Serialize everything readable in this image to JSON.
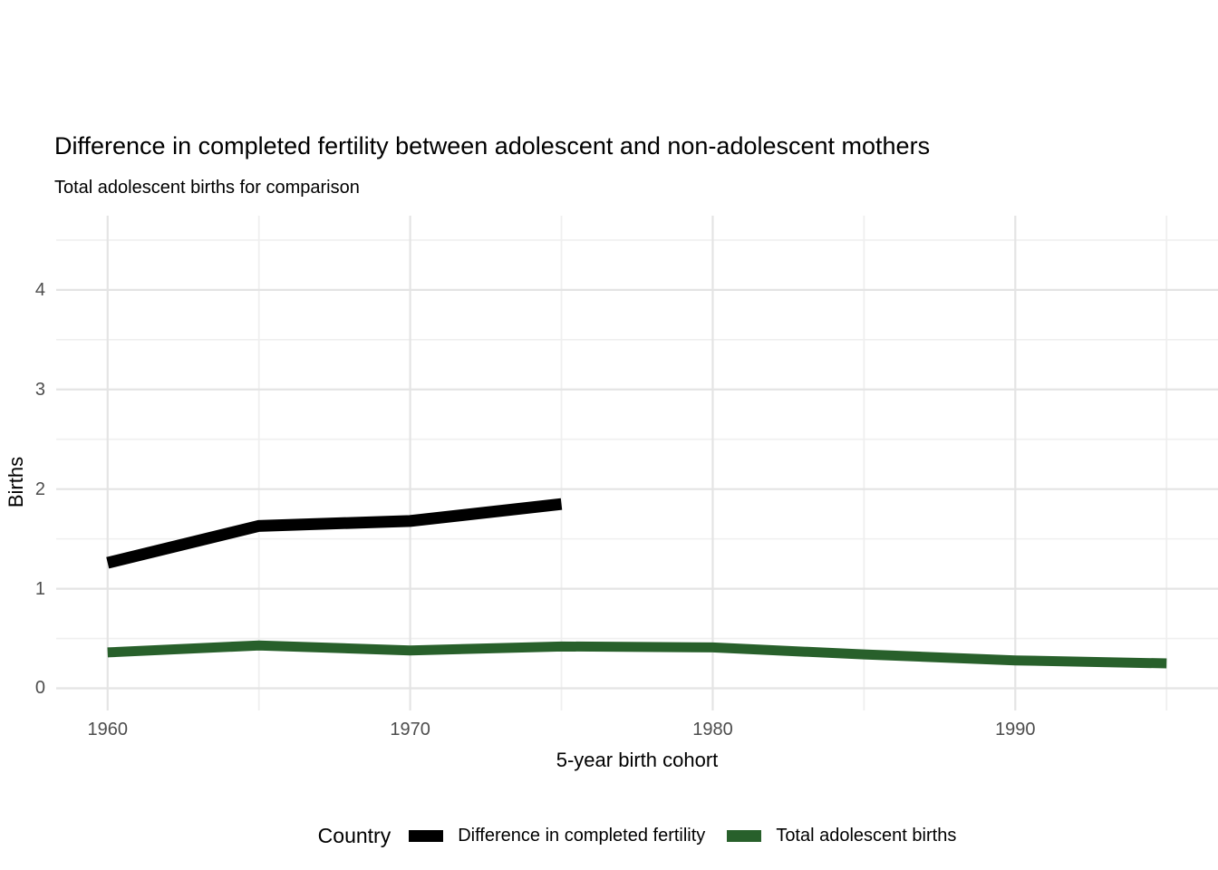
{
  "chart_data": {
    "type": "line",
    "title": "Difference in completed fertility between adolescent and non-adolescent mothers",
    "subtitle": "Total adolescent births for comparison",
    "xlabel": "5-year birth cohort",
    "ylabel": "Births",
    "xlim": [
      1958.3,
      1996.7
    ],
    "ylim": [
      -0.223,
      4.745
    ],
    "x_ticks": [
      1960,
      1970,
      1980,
      1990
    ],
    "x_minor_ticks": [
      1965,
      1975,
      1985,
      1995
    ],
    "y_ticks": [
      0,
      1,
      2,
      3,
      4
    ],
    "y_minor_ticks": [
      0.5,
      1.5,
      2.5,
      3.5,
      4.5
    ],
    "grid": true,
    "legend_title": "Country",
    "legend_position": "bottom",
    "series": [
      {
        "name": "Difference in completed fertility",
        "color": "#000000",
        "line_width": 13,
        "x": [
          1960,
          1965,
          1970,
          1975
        ],
        "values": [
          1.26,
          1.63,
          1.68,
          1.85
        ]
      },
      {
        "name": "Total adolescent births",
        "color": "#28602b",
        "line_width": 11,
        "x": [
          1960,
          1965,
          1970,
          1975,
          1980,
          1985,
          1990,
          1995
        ],
        "values": [
          0.36,
          0.43,
          0.38,
          0.42,
          0.41,
          0.34,
          0.28,
          0.25
        ]
      }
    ]
  },
  "colors": {
    "background": "#ffffff",
    "grid_major": "#e4e4e4",
    "grid_minor": "#efefef",
    "axis_text": "#4d4d4d",
    "title_text": "#000000"
  }
}
